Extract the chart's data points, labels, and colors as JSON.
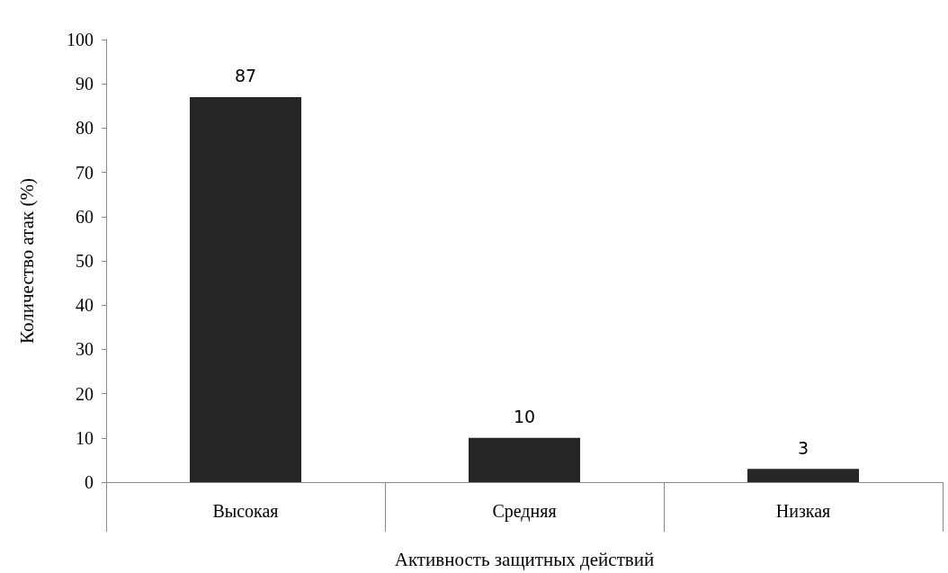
{
  "chart_data": {
    "type": "bar",
    "xlabel": "Активность защитных действий",
    "ylabel": "Количество атак (%)",
    "categories": [
      "Высокая",
      "Средняя",
      "Низкая"
    ],
    "values": [
      87,
      10,
      3
    ],
    "color": "#262626",
    "ylim": [
      0,
      100
    ],
    "yticks": [
      0,
      10,
      20,
      30,
      40,
      50,
      60,
      70,
      80,
      90,
      100
    ],
    "grid": false,
    "data_labels": true
  }
}
